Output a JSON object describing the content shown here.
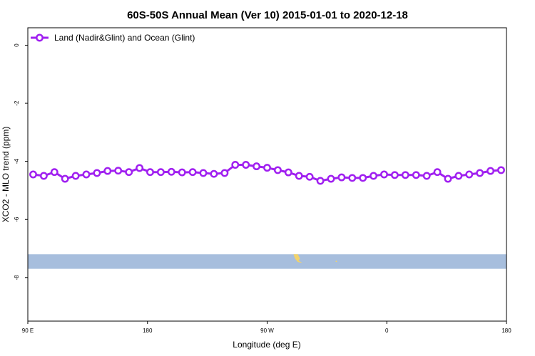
{
  "chart_data": {
    "type": "line",
    "title": "60S-50S Annual Mean (Ver 10)   2015-01-01 to 2020-12-18",
    "xlabel": "Longitude (deg E)",
    "ylabel": "XCO2 - MLO trend (ppm)",
    "xlim": [
      90,
      450
    ],
    "ylim": [
      -9.5,
      0.6
    ],
    "x_ticks": [
      {
        "value": 90,
        "label": "90 E"
      },
      {
        "value": 180,
        "label": "180"
      },
      {
        "value": 270,
        "label": "90 W"
      },
      {
        "value": 360,
        "label": "0"
      },
      {
        "value": 450,
        "label": "180"
      }
    ],
    "y_ticks": [
      0,
      -2,
      -4,
      -6,
      -8
    ],
    "legend": {
      "position": "top-left"
    },
    "grid": false,
    "series": [
      {
        "name": "Land (Nadir&Glint) and Ocean (Glint)",
        "color": "#a020f0",
        "x": [
          94,
          102,
          110,
          118,
          126,
          134,
          142,
          150,
          158,
          166,
          174,
          182,
          190,
          198,
          206,
          214,
          222,
          230,
          238,
          246,
          254,
          262,
          270,
          278,
          286,
          294,
          302,
          310,
          318,
          326,
          334,
          342,
          350,
          358,
          366,
          374,
          382,
          390,
          398,
          406,
          414,
          422,
          430,
          438,
          446
        ],
        "y": [
          -4.45,
          -4.5,
          -4.37,
          -4.6,
          -4.5,
          -4.45,
          -4.4,
          -4.33,
          -4.32,
          -4.37,
          -4.23,
          -4.37,
          -4.37,
          -4.36,
          -4.38,
          -4.37,
          -4.4,
          -4.43,
          -4.4,
          -4.12,
          -4.12,
          -4.17,
          -4.22,
          -4.3,
          -4.38,
          -4.5,
          -4.53,
          -4.67,
          -4.6,
          -4.55,
          -4.57,
          -4.57,
          -4.5,
          -4.45,
          -4.47,
          -4.47,
          -4.47,
          -4.5,
          -4.37,
          -4.6,
          -4.5,
          -4.45,
          -4.4,
          -4.33,
          -4.3
        ]
      }
    ],
    "map_band": {
      "y_top": -7.2,
      "y_bottom": -7.7,
      "x_start": 90,
      "x_end": 450,
      "color": "#a7bedd",
      "land_color": "#f2d36b"
    }
  }
}
